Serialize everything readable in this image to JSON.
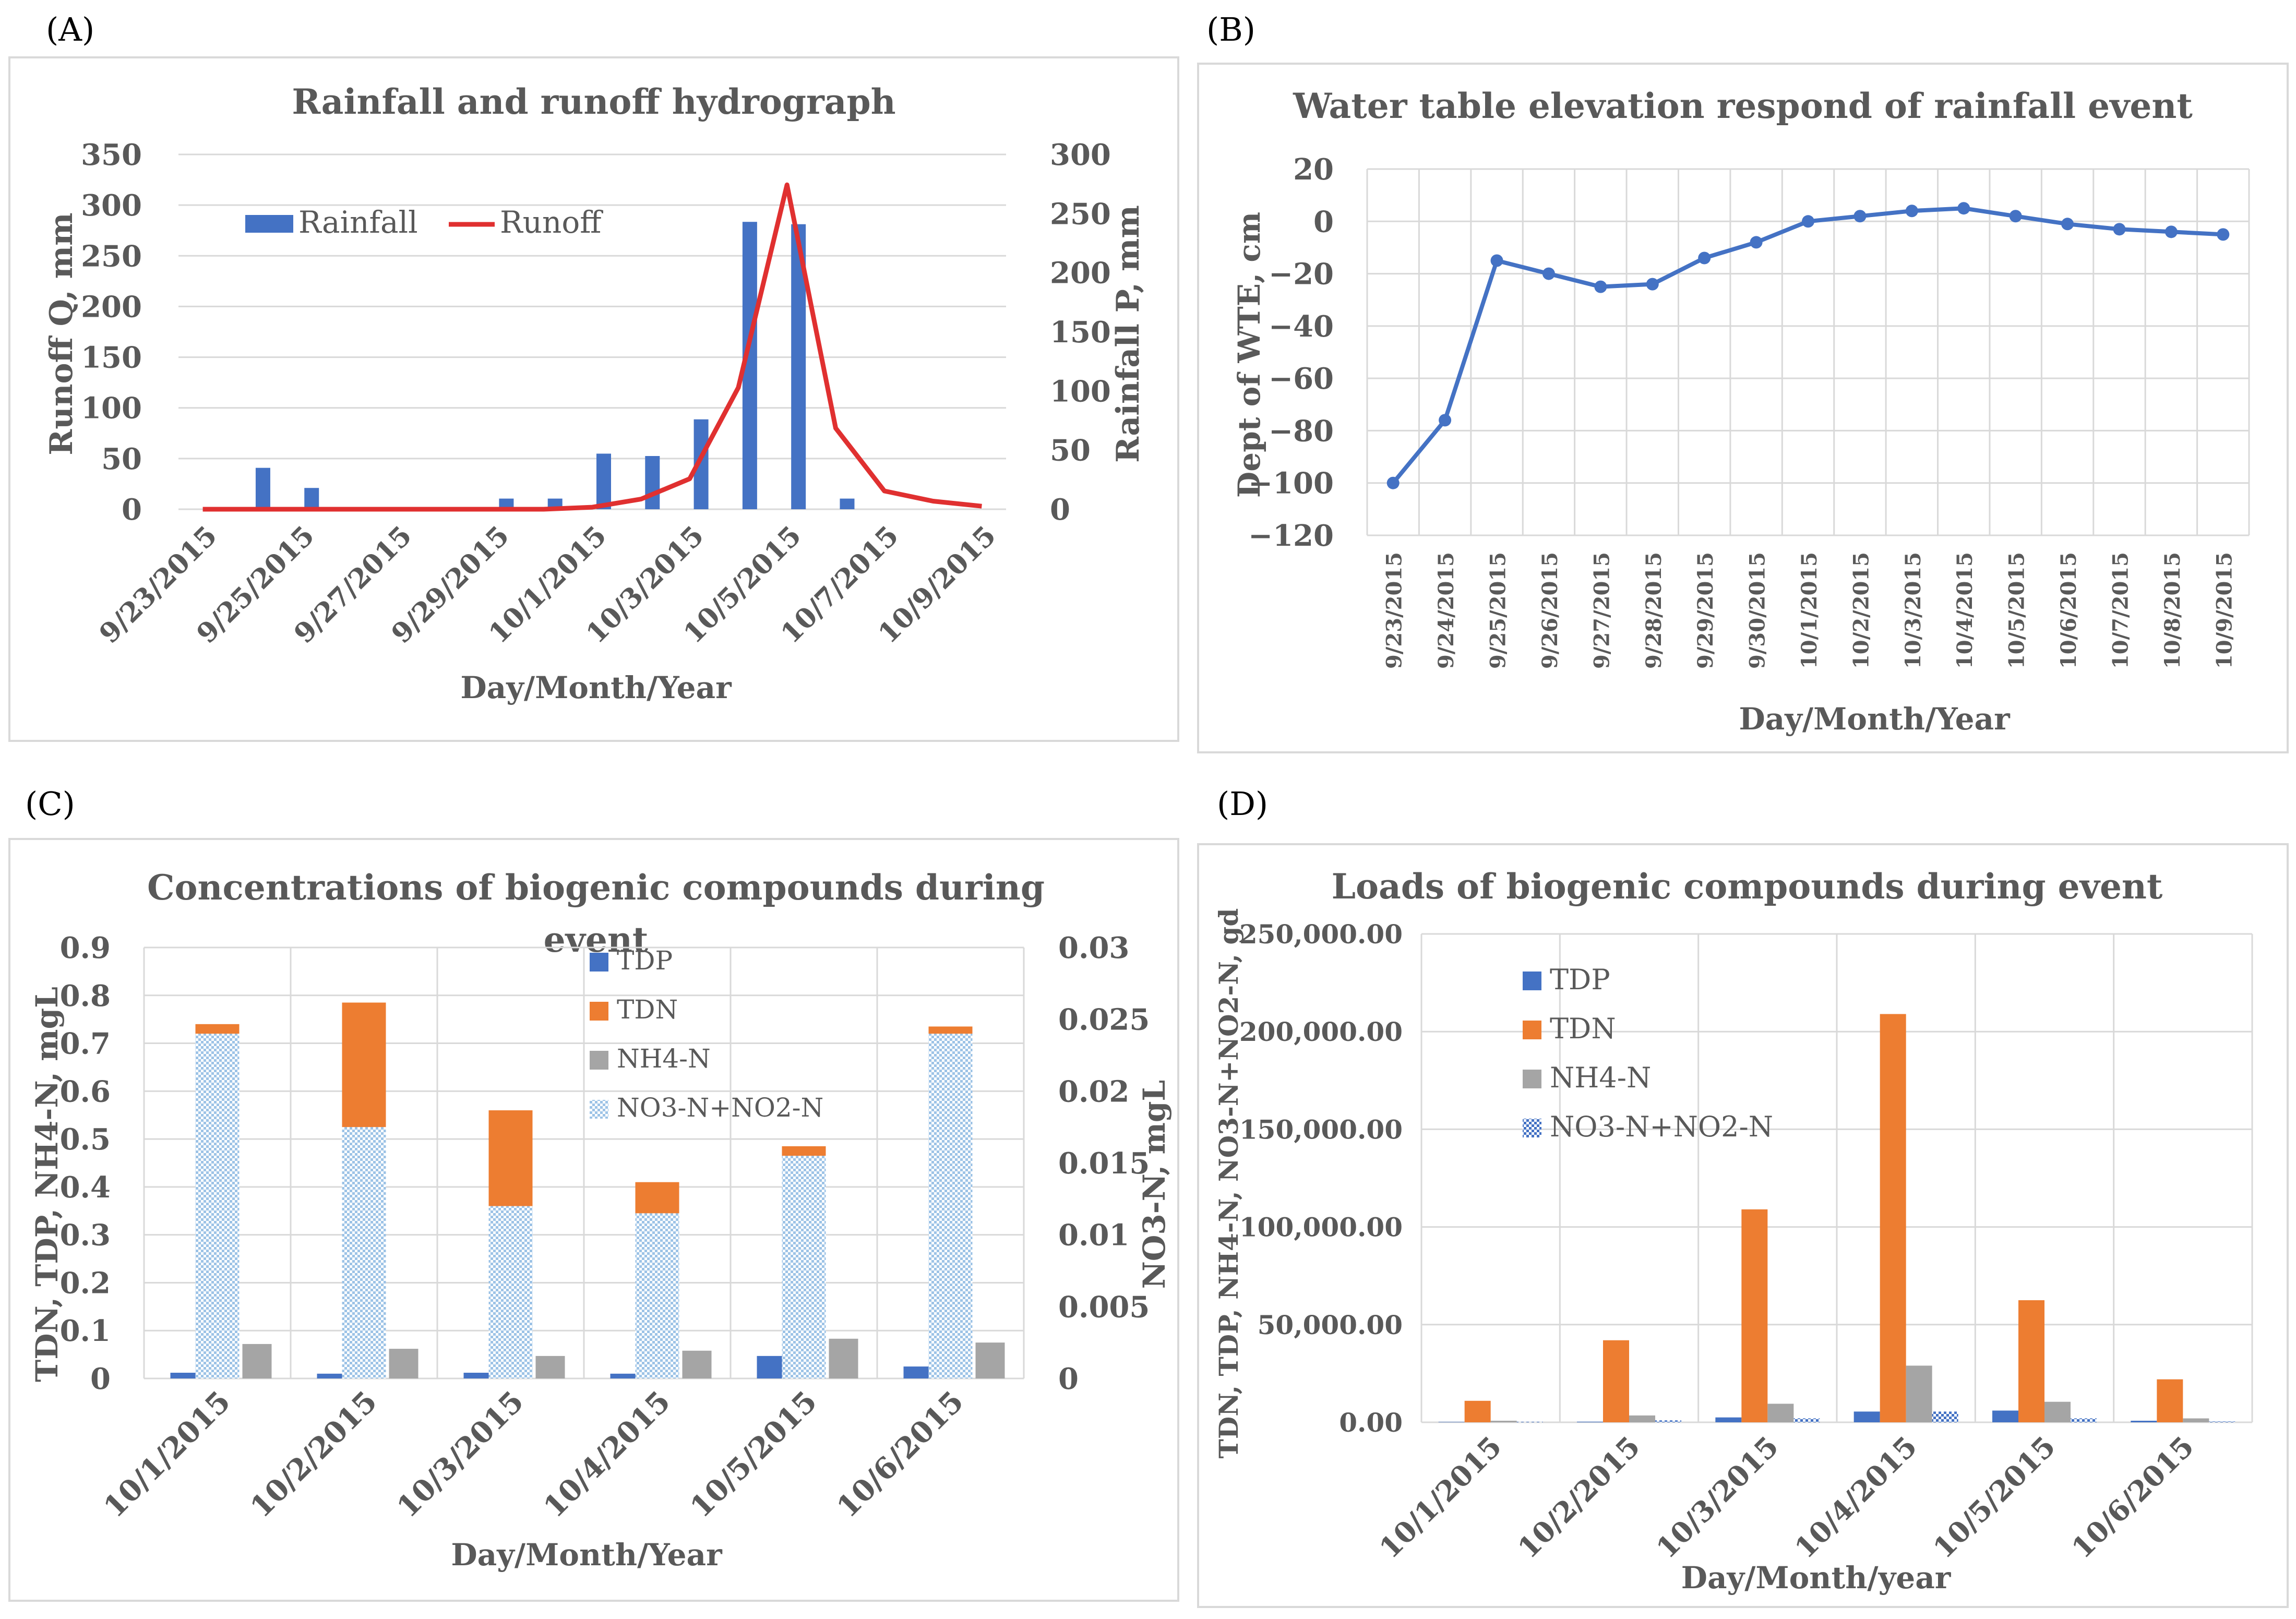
{
  "panels": {
    "a": "(A)",
    "b": "(B)",
    "c": "(C)",
    "d": "(D)"
  },
  "chart_data": [
    {
      "id": "A",
      "type": "bar+line",
      "title": "Rainfall and runoff hydrograph",
      "xlabel": "Day/Month/Year",
      "ylabel": "Runoff Q, mm",
      "y2label": "Rainfall P, mm",
      "ylim": [
        0,
        350
      ],
      "y2lim": [
        0,
        300
      ],
      "yticks": [
        "0",
        "50",
        "100",
        "150",
        "200",
        "250",
        "300",
        "350"
      ],
      "y2ticks": [
        "0",
        "50",
        "100",
        "150",
        "200",
        "250",
        "300"
      ],
      "categories": [
        "9/23/2015",
        "9/24/2015",
        "9/25/2015",
        "9/26/2015",
        "9/27/2015",
        "9/28/2015",
        "9/29/2015",
        "9/30/2015",
        "10/1/2015",
        "10/2/2015",
        "10/3/2015",
        "10/4/2015",
        "10/5/2015",
        "10/6/2015",
        "10/7/2015",
        "10/8/2015",
        "10/9/2015"
      ],
      "xtick_labels": [
        "9/23/2015",
        "",
        "9/25/2015",
        "",
        "9/27/2015",
        "",
        "9/29/2015",
        "",
        "10/1/2015",
        "",
        "10/3/2015",
        "",
        "10/5/2015",
        "",
        "10/7/2015",
        "",
        "10/9/2015"
      ],
      "colors": {
        "rainfall": "#4472c4",
        "runoff": "#e03030"
      },
      "series": [
        {
          "name": "Rainfall",
          "axis": "y2",
          "kind": "bar",
          "values": [
            0,
            35,
            18,
            0,
            0,
            0,
            9,
            9,
            47,
            45,
            76,
            243,
            241,
            9,
            0,
            0,
            0
          ]
        },
        {
          "name": "Runoff",
          "axis": "y",
          "kind": "line",
          "values": [
            0,
            0,
            0,
            0,
            0,
            0,
            0,
            0,
            2,
            10,
            30,
            120,
            320,
            80,
            18,
            8,
            3
          ]
        }
      ]
    },
    {
      "id": "B",
      "type": "line",
      "title": "Water table elevation respond of rainfall event",
      "xlabel": "Day/Month/Year",
      "ylabel": "Dept of WTE, cm",
      "ylim": [
        -120,
        20
      ],
      "yticks": [
        "−120",
        "−100",
        "−80",
        "−60",
        "−40",
        "−20",
        "0",
        "20"
      ],
      "categories": [
        "9/23/2015",
        "9/24/2015",
        "9/25/2015",
        "9/26/2015",
        "9/27/2015",
        "9/28/2015",
        "9/29/2015",
        "9/30/2015",
        "10/1/2015",
        "10/2/2015",
        "10/3/2015",
        "10/4/2015",
        "10/5/2015",
        "10/6/2015",
        "10/7/2015",
        "10/8/2015",
        "10/9/2015"
      ],
      "colors": {
        "line": "#4472c4"
      },
      "series": [
        {
          "name": "WTE",
          "values": [
            -100,
            -76,
            -15,
            -20,
            -25,
            -24,
            -14,
            -8,
            0,
            2,
            4,
            5,
            2,
            -1,
            -3,
            -4,
            -5
          ]
        }
      ]
    },
    {
      "id": "C",
      "type": "bar",
      "title": "Concentrations of biogenic compounds during event",
      "title_lines": [
        "Concentrations of biogenic compounds during",
        "event"
      ],
      "xlabel": "Day/Month/Year",
      "ylabel": "TDN, TDP, NH4-N, mgL",
      "y2label": "NO3-N, mgL",
      "ylim": [
        0,
        0.9
      ],
      "y2lim": [
        0,
        0.03
      ],
      "yticks": [
        "0",
        "0.1",
        "0.2",
        "0.3",
        "0.4",
        "0.5",
        "0.6",
        "0.7",
        "0.8",
        "0.9"
      ],
      "y2ticks": [
        "0",
        "0.005",
        "0.01",
        "0.015",
        "0.02",
        "0.025",
        "0.03"
      ],
      "categories": [
        "10/1/2015",
        "10/2/2015",
        "10/3/2015",
        "10/4/2015",
        "10/5/2015",
        "10/6/2015"
      ],
      "colors": {
        "TDP": "#4472c4",
        "TDN": "#ed7d31",
        "NH4-N": "#a5a5a5",
        "NO3-N+NO2-N": "#9dc3e6"
      },
      "series": [
        {
          "name": "TDP",
          "axis": "y",
          "values": [
            0.012,
            0.01,
            0.012,
            0.01,
            0.047,
            0.025
          ]
        },
        {
          "name": "TDN",
          "axis": "y",
          "values": [
            0.74,
            0.785,
            0.56,
            0.41,
            0.485,
            0.735
          ]
        },
        {
          "name": "NH4-N",
          "axis": "y",
          "values": [
            0.072,
            0.062,
            0.047,
            0.058,
            0.083,
            0.075
          ]
        },
        {
          "name": "NO3-N+NO2-N",
          "axis": "y2",
          "values": [
            0.024,
            0.0175,
            0.012,
            0.0115,
            0.0155,
            0.024
          ]
        }
      ]
    },
    {
      "id": "D",
      "type": "bar",
      "title": "Loads of biogenic compounds during event",
      "xlabel": "Day/Month/year",
      "ylabel": "TDN, TDP, NH4-N, NO3-N+NO2-N, gd",
      "ylim": [
        0,
        250000
      ],
      "yticks": [
        "0.00",
        "50,000.00",
        "100,000.00",
        "150,000.00",
        "200,000.00",
        "250,000.00"
      ],
      "categories": [
        "10/1/2015",
        "10/2/2015",
        "10/3/2015",
        "10/4/2015",
        "10/5/2015",
        "10/6/2015"
      ],
      "colors": {
        "TDP": "#4472c4",
        "TDN": "#ed7d31",
        "NH4-N": "#a5a5a5",
        "NO3-N+NO2-N": "#9dc3e6"
      },
      "series": [
        {
          "name": "TDP",
          "values": [
            200,
            300,
            2500,
            5500,
            6000,
            800
          ]
        },
        {
          "name": "TDN",
          "values": [
            11000,
            42000,
            109000,
            209000,
            62500,
            22000
          ]
        },
        {
          "name": "NH4-N",
          "values": [
            800,
            3500,
            9500,
            29000,
            10500,
            2000
          ]
        },
        {
          "name": "NO3-N+NO2-N",
          "values": [
            300,
            1000,
            2000,
            5500,
            2000,
            500
          ]
        }
      ]
    }
  ]
}
